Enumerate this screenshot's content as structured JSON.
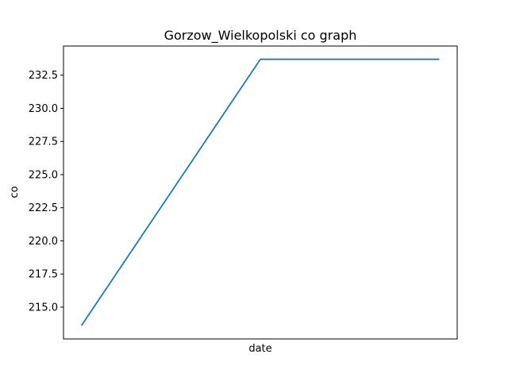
{
  "chart_data": {
    "type": "line",
    "title": "Gorzow_Wielkopolski co graph",
    "xlabel": "date",
    "ylabel": "co",
    "x": [
      0,
      1,
      2
    ],
    "series": [
      {
        "values": [
          213.6,
          233.7,
          233.7
        ],
        "color": "#1f77b4"
      }
    ],
    "ylim": [
      212.6,
      234.7
    ],
    "y_ticks": [
      215.0,
      217.5,
      220.0,
      222.5,
      225.0,
      227.5,
      230.0,
      232.5
    ],
    "y_tick_labels": [
      "215.0",
      "217.5",
      "220.0",
      "222.5",
      "225.0",
      "227.5",
      "230.0",
      "232.5"
    ],
    "x_tick_labels": [],
    "grid": false,
    "legend": "none"
  }
}
